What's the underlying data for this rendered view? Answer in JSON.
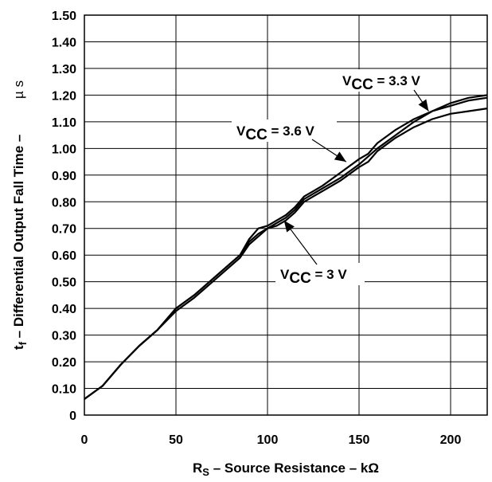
{
  "chart_data": {
    "type": "line",
    "title": "",
    "xlabel": "Source Resistance",
    "xlabel_parts": {
      "symbol": "R",
      "sub": "S",
      "text": " – Source Resistance – kΩ"
    },
    "ylabel_parts": {
      "symbol": "t",
      "sub": "f",
      "text": " – Differential Output Fall Time – ",
      "unit": "µ s"
    },
    "xlim": [
      0,
      220
    ],
    "ylim": [
      0,
      1.5
    ],
    "x_ticks": [
      "0",
      "50",
      "100",
      "150",
      "200"
    ],
    "x_tick_values": [
      0,
      50,
      100,
      150,
      200
    ],
    "y_ticks": [
      "0",
      "0.10",
      "0.20",
      "0.30",
      "0.40",
      "0.50",
      "0.60",
      "0.70",
      "0.80",
      "0.90",
      "1.00",
      "1.10",
      "1.20",
      "1.30",
      "1.40",
      "1.50"
    ],
    "y_tick_values": [
      0,
      0.1,
      0.2,
      0.3,
      0.4,
      0.5,
      0.6,
      0.7,
      0.8,
      0.9,
      1.0,
      1.1,
      1.2,
      1.3,
      1.4,
      1.5
    ],
    "x_grid": [
      50,
      100,
      150,
      200
    ],
    "y_grid": [
      0.1,
      0.2,
      0.3,
      0.4,
      0.5,
      0.6,
      0.7,
      0.8,
      0.9,
      1.0,
      1.1,
      1.2,
      1.3,
      1.4
    ],
    "grid": true,
    "legend": "none",
    "series": [
      {
        "name": "VCC = 3.3 V",
        "x": [
          0,
          10,
          20,
          30,
          40,
          50,
          60,
          70,
          80,
          85,
          90,
          95,
          100,
          105,
          110,
          115,
          120,
          125,
          130,
          140,
          150,
          155,
          160,
          170,
          180,
          190,
          200,
          210,
          220
        ],
        "y": [
          0.06,
          0.11,
          0.19,
          0.26,
          0.32,
          0.4,
          0.45,
          0.51,
          0.57,
          0.6,
          0.65,
          0.68,
          0.7,
          0.72,
          0.74,
          0.77,
          0.81,
          0.83,
          0.85,
          0.89,
          0.94,
          0.97,
          1.0,
          1.05,
          1.1,
          1.14,
          1.17,
          1.19,
          1.2
        ]
      },
      {
        "name": "VCC = 3.6 V",
        "x": [
          0,
          10,
          20,
          30,
          40,
          50,
          60,
          70,
          80,
          85,
          90,
          95,
          100,
          105,
          110,
          115,
          120,
          125,
          130,
          140,
          150,
          155,
          160,
          170,
          180,
          190,
          200,
          210,
          220
        ],
        "y": [
          0.06,
          0.11,
          0.19,
          0.26,
          0.32,
          0.4,
          0.45,
          0.51,
          0.57,
          0.6,
          0.66,
          0.7,
          0.71,
          0.73,
          0.75,
          0.78,
          0.82,
          0.84,
          0.86,
          0.91,
          0.96,
          0.98,
          1.02,
          1.07,
          1.11,
          1.14,
          1.16,
          1.18,
          1.19
        ]
      },
      {
        "name": "VCC = 3 V",
        "x": [
          0,
          10,
          20,
          30,
          40,
          50,
          60,
          70,
          80,
          85,
          90,
          95,
          100,
          105,
          110,
          115,
          120,
          125,
          130,
          140,
          150,
          155,
          160,
          170,
          180,
          190,
          200,
          210,
          220
        ],
        "y": [
          0.06,
          0.11,
          0.19,
          0.26,
          0.32,
          0.39,
          0.44,
          0.5,
          0.56,
          0.59,
          0.64,
          0.67,
          0.7,
          0.71,
          0.73,
          0.76,
          0.8,
          0.82,
          0.84,
          0.88,
          0.93,
          0.95,
          0.99,
          1.04,
          1.08,
          1.11,
          1.13,
          1.14,
          1.15
        ]
      }
    ],
    "annotations": [
      {
        "series": "VCC = 3.3 V",
        "v": "V",
        "sub": "CC",
        "text": " = 3.3 V",
        "target": [
          188,
          1.14
        ]
      },
      {
        "series": "VCC = 3.6 V",
        "v": "V",
        "sub": "CC",
        "text": " = 3.6 V",
        "target": [
          143,
          0.95
        ]
      },
      {
        "series": "VCC = 3 V",
        "v": "V",
        "sub": "CC",
        "text": " = 3 V",
        "target": [
          109,
          0.73
        ]
      }
    ]
  }
}
